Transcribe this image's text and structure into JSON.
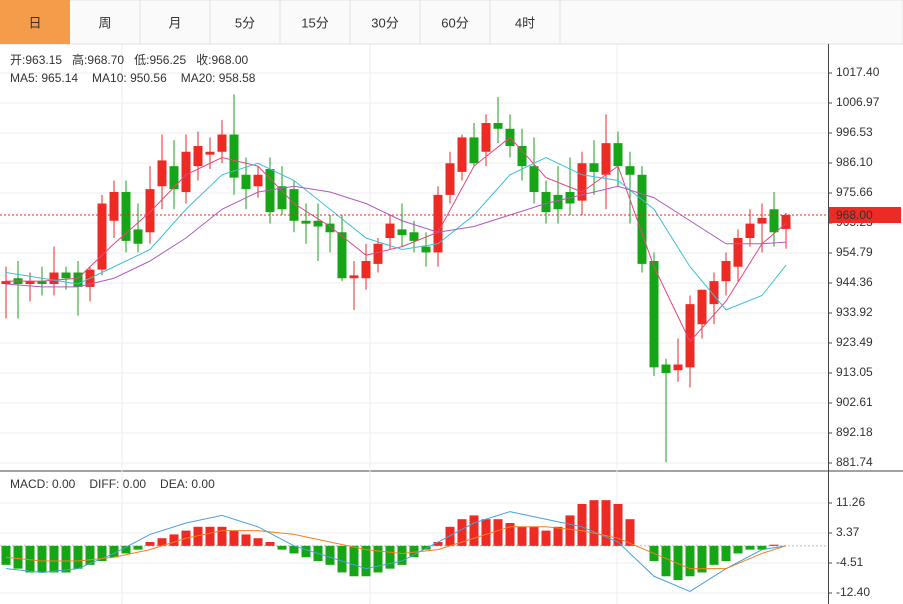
{
  "tabs": {
    "items": [
      "日",
      "周",
      "月",
      "5分",
      "15分",
      "30分",
      "60分",
      "4时"
    ],
    "active": 0,
    "active_color": "#f59c4b"
  },
  "chart_data": [
    {
      "type": "candlestick",
      "up_color": "#ee2a24",
      "down_color": "#16a516",
      "info": [
        {
          "label": "开:",
          "value": "963.15"
        },
        {
          "label": "高:",
          "value": "968.70"
        },
        {
          "label": "低:",
          "value": "956.25"
        },
        {
          "label": "收:",
          "value": "968.00"
        }
      ],
      "open": [
        944,
        946,
        944,
        945,
        944,
        948,
        948,
        943,
        949,
        966,
        976,
        963,
        962,
        978,
        985,
        976,
        985,
        989,
        990,
        996,
        982,
        978,
        984,
        978,
        977,
        966,
        966,
        965,
        962,
        946,
        946,
        951,
        960,
        963,
        962,
        957,
        955,
        975,
        983,
        995,
        990,
        1000,
        998,
        992,
        985,
        976,
        975,
        976,
        973,
        986,
        982,
        993,
        985,
        982,
        952,
        916,
        914,
        915,
        930,
        937,
        945,
        950,
        960,
        965,
        970,
        963.15
      ],
      "high": [
        950,
        952,
        948,
        950,
        957,
        950,
        952,
        950,
        975,
        980,
        980,
        972,
        985,
        996,
        994,
        996,
        997,
        995,
        1001,
        1010,
        988,
        985,
        988,
        985,
        980,
        972,
        972,
        968,
        968,
        952,
        958,
        960,
        968,
        972,
        966,
        962,
        978,
        990,
        996,
        1000,
        1003,
        1009,
        1003,
        998,
        995,
        980,
        985,
        988,
        990,
        994,
        1003,
        997,
        990,
        985,
        955,
        918,
        925,
        940,
        942,
        948,
        955,
        963,
        970,
        972,
        976,
        968.7
      ],
      "low": [
        932,
        932,
        938,
        940,
        940,
        942,
        933,
        938,
        947,
        960,
        955,
        955,
        958,
        970,
        970,
        972,
        980,
        984,
        986,
        975,
        970,
        974,
        965,
        968,
        962,
        958,
        952,
        955,
        945,
        935,
        942,
        948,
        956,
        957,
        955,
        950,
        950,
        972,
        980,
        985,
        985,
        993,
        988,
        980,
        972,
        965,
        965,
        968,
        968,
        975,
        970,
        978,
        965,
        948,
        912,
        882,
        910,
        908,
        925,
        930,
        940,
        945,
        957,
        955,
        957,
        956.25
      ],
      "close": [
        945,
        944,
        945,
        944,
        948,
        946,
        943,
        949,
        972,
        976,
        959,
        958,
        977,
        987,
        977,
        990,
        992,
        990,
        996,
        981,
        977,
        982,
        969,
        970,
        966,
        965,
        964,
        962,
        946,
        947,
        952,
        958,
        965,
        961,
        959,
        955,
        975,
        986,
        995,
        986,
        1000,
        998,
        992,
        985,
        976,
        969,
        970,
        972,
        986,
        983,
        993,
        985,
        982,
        951,
        915,
        913,
        916,
        937,
        942,
        945,
        952,
        960,
        965,
        967,
        962,
        968
      ],
      "xlim": [
        -0.5,
        68.5
      ],
      "ylim": [
        879.3,
        1027.14
      ],
      "yticks": [
        {
          "value": 1017.4,
          "label": "1017.40"
        },
        {
          "value": 1006.97,
          "label": "1006.97"
        },
        {
          "value": 996.53,
          "label": "996.53"
        },
        {
          "value": 986.1,
          "label": "986.10"
        },
        {
          "value": 975.66,
          "label": "975.66"
        },
        {
          "value": 965.23,
          "label": "965.23"
        },
        {
          "value": 954.79,
          "label": "954.79"
        },
        {
          "value": 944.36,
          "label": "944.36"
        },
        {
          "value": 933.92,
          "label": "933.92"
        },
        {
          "value": 923.49,
          "label": "923.49"
        },
        {
          "value": 913.05,
          "label": "913.05"
        },
        {
          "value": 902.61,
          "label": "902.61"
        },
        {
          "value": 892.18,
          "label": "892.18"
        },
        {
          "value": 881.74,
          "label": "881.74"
        }
      ],
      "last_price": {
        "value": 968,
        "label": "968.00"
      },
      "series": [
        {
          "name": "MA5",
          "label": "MA5: 965.14",
          "color": "#e6457f",
          "x": [
            0,
            3,
            6,
            9,
            12,
            15,
            18,
            21,
            24,
            27,
            30,
            33,
            36,
            39,
            42,
            45,
            48,
            51,
            54,
            57,
            60,
            63,
            65
          ],
          "values": [
            945,
            945,
            946,
            958,
            969,
            982,
            988,
            985,
            972,
            964,
            954,
            957,
            962,
            985,
            995,
            981,
            976,
            985,
            950,
            924,
            938,
            958,
            965.14
          ]
        },
        {
          "name": "MA10",
          "label": "MA10: 950.56",
          "color": "#3cc0d4",
          "x": [
            0,
            3,
            6,
            9,
            12,
            15,
            18,
            21,
            24,
            27,
            30,
            33,
            36,
            39,
            42,
            45,
            48,
            51,
            54,
            57,
            60,
            63,
            65
          ],
          "values": [
            948,
            946,
            944,
            950,
            956,
            970,
            982,
            986,
            980,
            970,
            960,
            956,
            958,
            968,
            982,
            988,
            982,
            980,
            970,
            950,
            935,
            940,
            950.56
          ]
        },
        {
          "name": "MA20",
          "label": "MA20: 958.58",
          "color": "#b05ac0",
          "x": [
            0,
            3,
            6,
            9,
            12,
            15,
            18,
            21,
            24,
            27,
            30,
            33,
            36,
            39,
            42,
            45,
            48,
            51,
            54,
            57,
            60,
            63,
            65
          ],
          "values": [
            944,
            943,
            943,
            946,
            952,
            960,
            970,
            976,
            978,
            976,
            972,
            966,
            962,
            964,
            968,
            972,
            975,
            978,
            974,
            966,
            958,
            958,
            958.58
          ]
        }
      ]
    },
    {
      "type": "macd",
      "up_color": "#ee2a24",
      "down_color": "#16a516",
      "xlim": [
        -0.5,
        68.5
      ],
      "ylim": [
        -14.24,
        18.62
      ],
      "yticks": [
        11.26,
        3.37,
        -4.51,
        {
          "value": -12.4,
          "label": "-12.40"
        }
      ],
      "series": [
        {
          "name": "MACD",
          "label": "MACD: 0.00",
          "color": "#ee2a24",
          "values": [
            -5,
            -6,
            -7,
            -7,
            -7,
            -7,
            -6,
            -5,
            -4,
            -3,
            -2,
            -1,
            1,
            2,
            3,
            4,
            5,
            5,
            5,
            4,
            3,
            2,
            1,
            -1,
            -2,
            -3,
            -4,
            -5,
            -7,
            -8,
            -8,
            -7,
            -6,
            -5,
            -3,
            -1,
            1,
            5,
            7,
            8,
            7,
            7,
            6,
            5,
            5,
            4,
            5,
            8,
            11,
            12,
            12,
            11,
            7,
            0,
            -4,
            -8,
            -9,
            -8,
            -7,
            -5,
            -4,
            -2,
            -1,
            -1,
            0.3,
            0
          ]
        },
        {
          "name": "DIFF",
          "label": "DIFF: 0.00",
          "color": "#4a9fe0",
          "x": [
            0,
            3,
            6,
            9,
            12,
            15,
            18,
            21,
            24,
            27,
            30,
            33,
            36,
            39,
            42,
            45,
            48,
            51,
            54,
            57,
            60,
            63,
            65
          ],
          "values": [
            -6,
            -7,
            -6,
            -2,
            3,
            6,
            8,
            5,
            0,
            -3,
            -6,
            -4,
            1,
            6,
            9,
            7,
            5,
            1,
            -8,
            -12,
            -6,
            -1,
            0
          ]
        },
        {
          "name": "DEA",
          "label": "DEA: 0.00",
          "color": "#f08020",
          "x": [
            0,
            3,
            6,
            9,
            12,
            15,
            18,
            21,
            24,
            27,
            30,
            33,
            36,
            39,
            42,
            45,
            48,
            51,
            54,
            57,
            60,
            63,
            65
          ],
          "values": [
            -3,
            -4,
            -4,
            -3,
            -1,
            2,
            4,
            4,
            3,
            1,
            -1,
            -2,
            -1,
            2,
            5,
            5,
            4,
            2,
            -2,
            -6,
            -6,
            -2,
            0
          ]
        }
      ]
    }
  ]
}
